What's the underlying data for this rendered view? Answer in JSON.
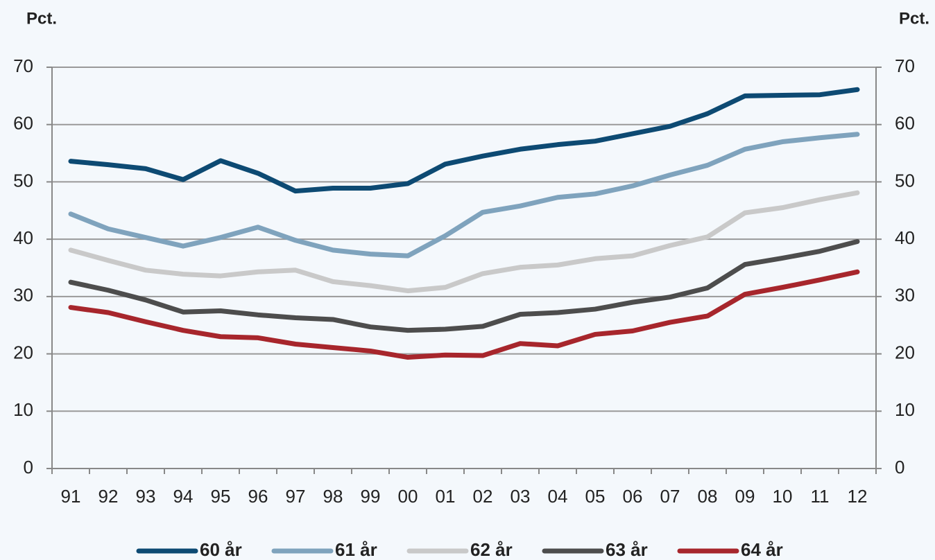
{
  "chart_data": {
    "type": "line",
    "y_label": "Pct.",
    "y2_label": "Pct.",
    "categories": [
      "91",
      "92",
      "93",
      "94",
      "95",
      "96",
      "97",
      "98",
      "99",
      "00",
      "01",
      "02",
      "03",
      "04",
      "05",
      "06",
      "07",
      "08",
      "09",
      "10",
      "11",
      "12"
    ],
    "series": [
      {
        "name": "60 år",
        "color": "#0d4a73",
        "values": [
          53.6,
          53.0,
          52.3,
          50.4,
          53.7,
          51.5,
          48.4,
          48.9,
          48.9,
          49.7,
          53.1,
          54.5,
          55.7,
          56.5,
          57.1,
          58.4,
          59.7,
          61.9,
          65.0,
          65.1,
          65.2,
          66.1
        ]
      },
      {
        "name": "61 år",
        "color": "#7fa3bd",
        "values": [
          44.4,
          41.8,
          40.3,
          38.8,
          40.3,
          42.1,
          39.8,
          38.1,
          37.4,
          37.1,
          40.6,
          44.7,
          45.8,
          47.3,
          47.9,
          49.3,
          51.2,
          52.9,
          55.7,
          57.0,
          57.7,
          58.3
        ]
      },
      {
        "name": "62 år",
        "color": "#c9c9c9",
        "values": [
          38.1,
          36.3,
          34.6,
          33.9,
          33.6,
          34.3,
          34.6,
          32.6,
          31.9,
          31.0,
          31.6,
          34.0,
          35.1,
          35.5,
          36.6,
          37.1,
          38.9,
          40.4,
          44.6,
          45.5,
          46.9,
          48.1
        ]
      },
      {
        "name": "63 år",
        "color": "#4d4d4d",
        "values": [
          32.5,
          31.1,
          29.4,
          27.3,
          27.5,
          26.8,
          26.3,
          26.0,
          24.7,
          24.1,
          24.3,
          24.8,
          26.9,
          27.2,
          27.8,
          29.0,
          29.9,
          31.5,
          35.6,
          36.7,
          37.9,
          39.6
        ]
      },
      {
        "name": "64 år",
        "color": "#a7262c",
        "values": [
          28.1,
          27.2,
          25.6,
          24.1,
          23.0,
          22.8,
          21.7,
          21.1,
          20.5,
          19.4,
          19.8,
          19.7,
          21.8,
          21.4,
          23.4,
          24.0,
          25.5,
          26.6,
          30.4,
          31.6,
          32.9,
          34.3
        ]
      }
    ],
    "ylim": [
      0,
      70
    ],
    "yticks": [
      0,
      10,
      20,
      30,
      40,
      50,
      60,
      70
    ],
    "y2lim": [
      0,
      70
    ],
    "y2ticks": [
      0,
      10,
      20,
      30,
      40,
      50,
      60,
      70
    ],
    "grid": true,
    "legend": "bottom"
  }
}
